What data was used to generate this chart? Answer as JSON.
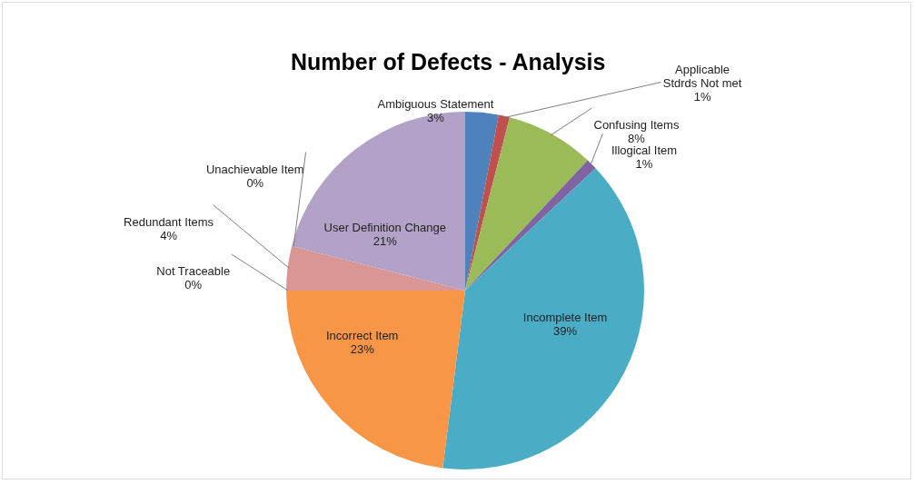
{
  "chart_data": {
    "type": "pie",
    "title": "Number of Defects - Analysis",
    "categories": [
      "Ambiguous Statement",
      "Applicable\nStdrds Not met",
      "Confusing Items",
      "Illogical Item",
      "Incomplete Item",
      "Incorrect Item",
      "Not Traceable",
      "Redundant Items",
      "Unachievable Item",
      "User Definition Change"
    ],
    "values": [
      3,
      1,
      8,
      1,
      39,
      23,
      0,
      4,
      0,
      21
    ],
    "value_labels": [
      "3%",
      "1%",
      "8%",
      "1%",
      "39%",
      "23%",
      "0%",
      "4%",
      "0%",
      "21%"
    ],
    "colors": [
      "#4f81bd",
      "#c0504d",
      "#9bbb59",
      "#8064a2",
      "#4bacc6",
      "#f79646",
      "#95b3d7",
      "#d99694",
      "#c3d69b",
      "#b3a2c7"
    ],
    "legend": false
  }
}
